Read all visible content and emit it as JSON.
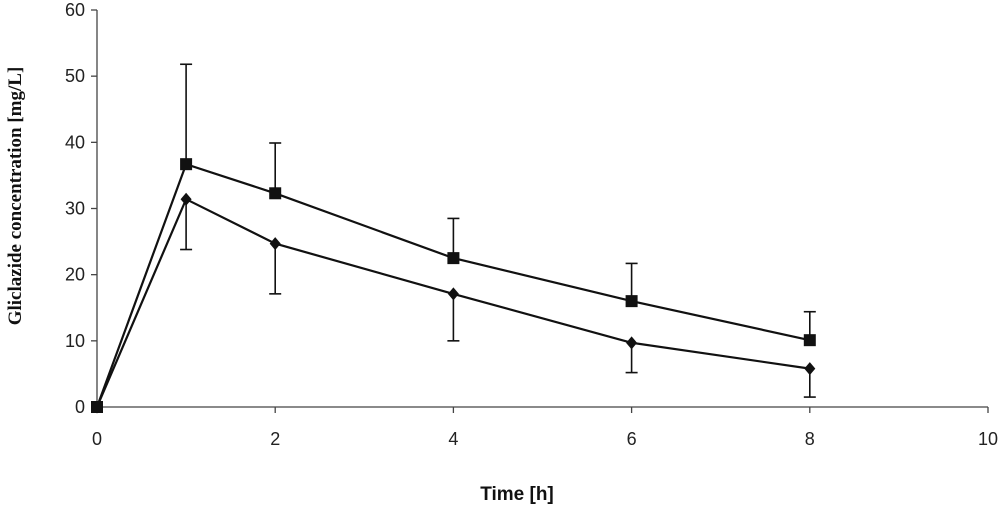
{
  "chart_data": {
    "type": "line",
    "title": "",
    "xlabel": "Time [h]",
    "ylabel": "Gliclazide concentration [mg/L]",
    "xlim": [
      0,
      10
    ],
    "ylim": [
      0,
      60
    ],
    "xticks": [
      "0",
      "2",
      "4",
      "6",
      "8",
      "10"
    ],
    "yticks": [
      "0",
      "10",
      "20",
      "30",
      "40",
      "50",
      "60"
    ],
    "grid": false,
    "legend": "none",
    "series": [
      {
        "marker": "square",
        "x": [
          0,
          1,
          2,
          4,
          6,
          8
        ],
        "y": [
          0,
          36.7,
          32.3,
          22.5,
          16.0,
          10.1
        ],
        "error_upper": [
          0,
          15.1,
          7.6,
          6.0,
          5.7,
          4.3
        ]
      },
      {
        "marker": "diamond",
        "x": [
          0,
          1,
          2,
          4,
          6,
          8
        ],
        "y": [
          0,
          31.4,
          24.7,
          17.1,
          9.7,
          5.8
        ],
        "error_lower": [
          0,
          7.6,
          7.6,
          7.1,
          4.5,
          4.3
        ]
      }
    ],
    "colors": {
      "line": "#111111",
      "axis": "#444444"
    }
  }
}
